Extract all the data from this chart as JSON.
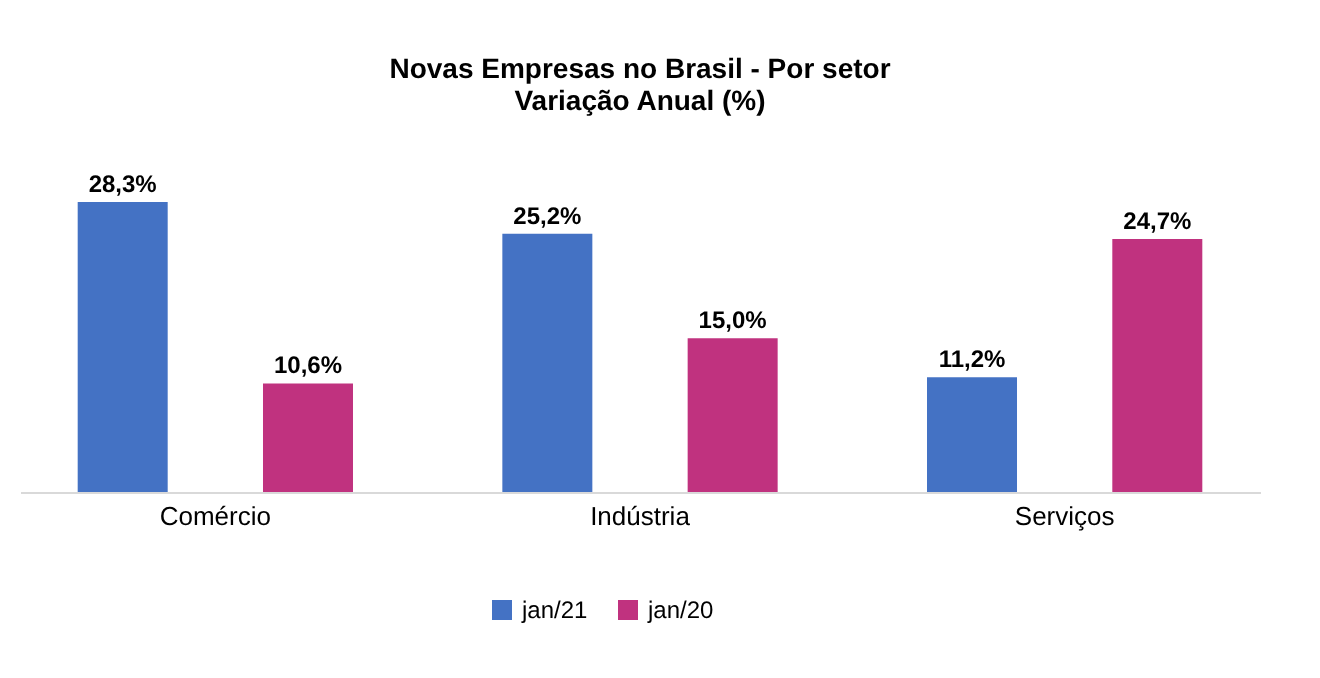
{
  "chart_data": {
    "type": "bar",
    "title": "Novas Empresas no Brasil - Por setor",
    "subtitle": "Variação Anual (%)",
    "categories": [
      "Comércio",
      "Indústria",
      "Serviços"
    ],
    "series": [
      {
        "name": "jan/21",
        "color": "#4472c4",
        "values": [
          28.3,
          25.2,
          11.2
        ],
        "value_labels": [
          "28,3%",
          "25,2%",
          "11,2%"
        ]
      },
      {
        "name": "jan/20",
        "color": "#c0327f",
        "values": [
          10.6,
          15.0,
          24.7
        ],
        "value_labels": [
          "10,6%",
          "15,0%",
          "24,7%"
        ]
      }
    ],
    "legend": "bottom"
  }
}
